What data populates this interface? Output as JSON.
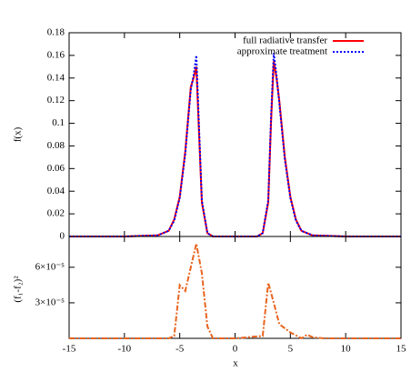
{
  "chart_data": [
    {
      "type": "line",
      "ylabel": "f(x)",
      "x": [
        -15,
        -10,
        -7,
        -6,
        -5.5,
        -5,
        -4.5,
        -4,
        -3.75,
        -3.5,
        -3.25,
        -3,
        -2.5,
        -2,
        -1,
        0,
        1,
        2,
        2.5,
        3,
        3.25,
        3.5,
        3.75,
        4,
        4.5,
        5,
        5.5,
        6,
        7,
        10,
        15
      ],
      "series": [
        {
          "name": "full radiative transfer",
          "color": "#ff0000",
          "dash": "solid",
          "values": [
            0,
            0,
            0.001,
            0.005,
            0.015,
            0.035,
            0.075,
            0.132,
            0.14,
            0.15,
            0.09,
            0.03,
            0.003,
            0,
            0,
            0,
            0,
            0,
            0.003,
            0.03,
            0.1,
            0.155,
            0.14,
            0.12,
            0.07,
            0.035,
            0.015,
            0.005,
            0.001,
            0,
            0
          ]
        },
        {
          "name": "approximate treatment",
          "color": "#0000ff",
          "dash": "dotted",
          "values": [
            0,
            0,
            0.001,
            0.005,
            0.014,
            0.034,
            0.073,
            0.13,
            0.142,
            0.16,
            0.095,
            0.032,
            0.003,
            0,
            0,
            0,
            0,
            0,
            0.003,
            0.032,
            0.105,
            0.162,
            0.142,
            0.118,
            0.068,
            0.034,
            0.014,
            0.005,
            0.001,
            0,
            0
          ]
        }
      ],
      "xlim": [
        -15,
        15
      ],
      "xticks": [
        -15,
        -10,
        -5,
        0,
        5,
        10,
        15
      ],
      "ylim": [
        0,
        0.18
      ],
      "yticks": [
        0,
        0.02,
        0.04,
        0.06,
        0.08,
        0.1,
        0.12,
        0.14,
        0.16,
        0.18
      ],
      "legend": "top-right"
    },
    {
      "type": "line",
      "xlabel": "x",
      "ylabel": "(f₁-f₂)²",
      "x": [
        -15,
        -6,
        -5.5,
        -5,
        -4.5,
        -4,
        -3.5,
        -3,
        -2.5,
        -2,
        0,
        2.5,
        3,
        3.5,
        4,
        5,
        6,
        6.5,
        7,
        8,
        15
      ],
      "series": [
        {
          "name": null,
          "color": "#e8641e",
          "dash": "dashdot",
          "values": [
            0,
            0,
            2e-06,
            4.5e-05,
            4e-05,
            6e-05,
            8e-05,
            5.5e-05,
            1e-05,
            0,
            0,
            2e-06,
            4.7e-05,
            3e-05,
            1.2e-05,
            5e-06,
            0,
            3e-06,
            1e-06,
            0,
            0
          ]
        }
      ],
      "xlim": [
        -15,
        15
      ],
      "xticks": [
        -15,
        -10,
        -5,
        0,
        5,
        10,
        15
      ],
      "ylim": [
        0,
        8.6e-05
      ],
      "yticks": [
        {
          "value": 3e-05,
          "label": "3×10⁻⁵"
        },
        {
          "value": 6e-05,
          "label": "6×10⁻⁵"
        }
      ]
    }
  ]
}
